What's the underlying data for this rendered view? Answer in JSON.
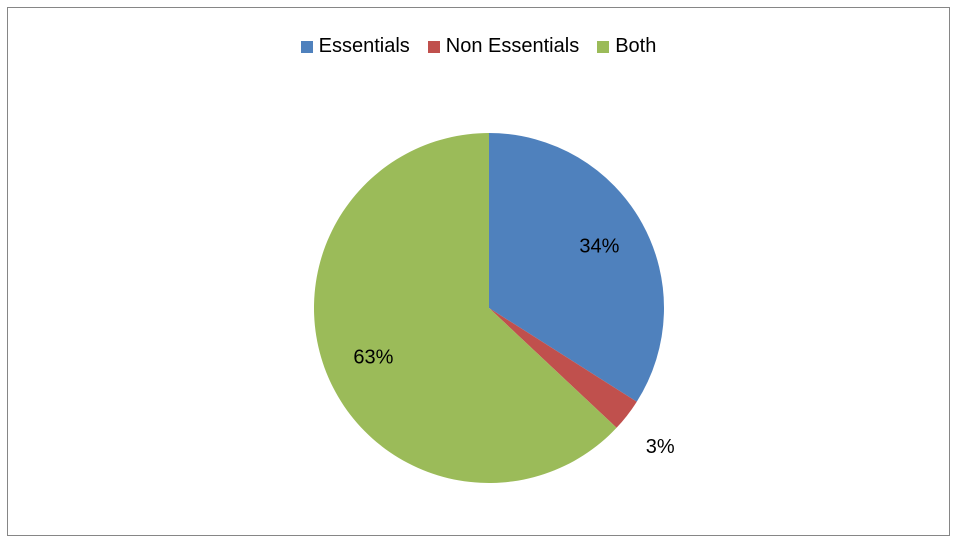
{
  "chart_data": {
    "type": "pie",
    "legend_position": "top",
    "slices": [
      {
        "name": "Essentials",
        "value": 34,
        "label": "34%",
        "color": "#4F81BD"
      },
      {
        "name": "Non Essentials",
        "value": 3,
        "label": "3%",
        "color": "#C0504D"
      },
      {
        "name": "Both",
        "value": 63,
        "label": "63%",
        "color": "#9BBB59"
      }
    ]
  }
}
